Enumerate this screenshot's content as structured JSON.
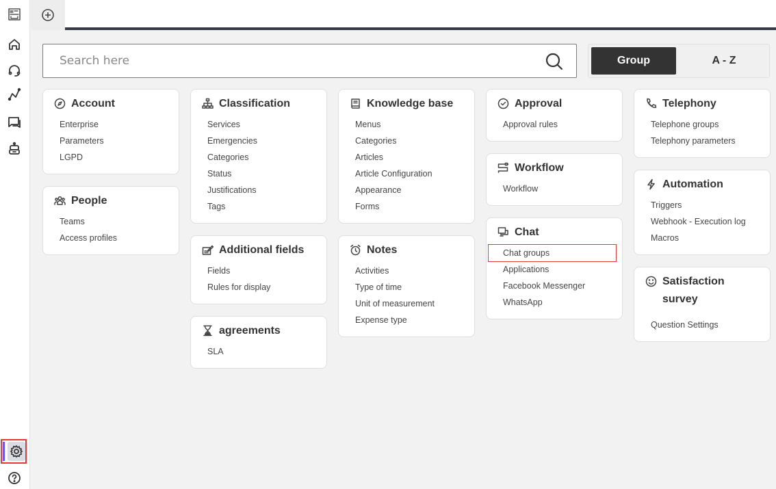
{
  "sidebar": {
    "items": [
      "logo",
      "home",
      "support",
      "analytics",
      "chat",
      "bot"
    ],
    "settings": "settings",
    "help": "help"
  },
  "topbar": {
    "new_tab": "add-tab"
  },
  "search": {
    "placeholder": "Search here"
  },
  "view_toggle": {
    "group": "Group",
    "az": "A - Z",
    "selected": "Group"
  },
  "accent": {
    "highlight": "#e53935",
    "active_bar": "#5b5bff",
    "dark": "#333333"
  },
  "cards": {
    "account": {
      "title": "Account",
      "items": [
        "Enterprise",
        "Parameters",
        "LGPD"
      ]
    },
    "people": {
      "title": "People",
      "items": [
        "Teams",
        "Access profiles"
      ]
    },
    "classification": {
      "title": "Classification",
      "items": [
        "Services",
        "Emergencies",
        "Categories",
        "Status",
        "Justifications",
        "Tags"
      ]
    },
    "additional_fields": {
      "title": "Additional fields",
      "items": [
        "Fields",
        "Rules for display"
      ]
    },
    "agreements": {
      "title": "agreements",
      "items": [
        "SLA"
      ]
    },
    "knowledge_base": {
      "title": "Knowledge base",
      "items": [
        "Menus",
        "Categories",
        "Articles",
        "Article Configuration",
        "Appearance",
        "Forms"
      ]
    },
    "notes": {
      "title": "Notes",
      "items": [
        "Activities",
        "Type of time",
        "Unit of measurement",
        "Expense type"
      ]
    },
    "approval": {
      "title": "Approval",
      "items": [
        "Approval rules"
      ]
    },
    "workflow": {
      "title": "Workflow",
      "items": [
        "Workflow"
      ]
    },
    "chat": {
      "title": "Chat",
      "items": [
        "Chat groups",
        "Applications",
        "Facebook Messenger",
        "WhatsApp"
      ]
    },
    "telephony": {
      "title": "Telephony",
      "items": [
        "Telephone groups",
        "Telephony parameters"
      ]
    },
    "automation": {
      "title": "Automation",
      "items": [
        "Triggers",
        "Webhook - Execution log",
        "Macros"
      ]
    },
    "satisfaction": {
      "title": "Satisfaction survey",
      "items": [
        "Question Settings"
      ]
    }
  }
}
